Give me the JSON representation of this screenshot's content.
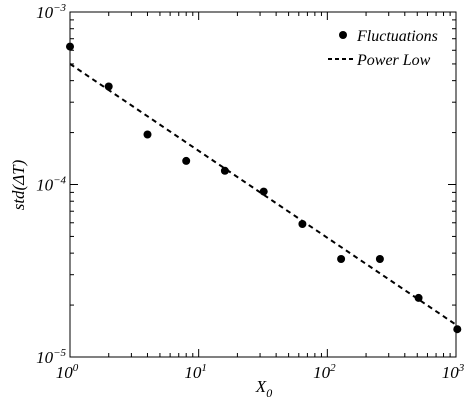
{
  "chart_data": {
    "type": "scatter",
    "x_scale": "log",
    "y_scale": "log",
    "xlim": [
      1,
      1000
    ],
    "ylim": [
      1e-05,
      0.001
    ],
    "grid": false,
    "legend_position": "top-right",
    "xlabel": "X",
    "xlabel_sub": "0",
    "ylabel": "std(ΔT)",
    "x_ticks": [
      {
        "value": 1,
        "base": "10",
        "exp": "0"
      },
      {
        "value": 10,
        "base": "10",
        "exp": "1"
      },
      {
        "value": 100,
        "base": "10",
        "exp": "2"
      },
      {
        "value": 1000,
        "base": "10",
        "exp": "3"
      }
    ],
    "y_ticks": [
      {
        "value": 1e-05,
        "base": "10",
        "exp": "−5"
      },
      {
        "value": 0.0001,
        "base": "10",
        "exp": "−4"
      },
      {
        "value": 0.001,
        "base": "10",
        "exp": "−3"
      }
    ],
    "series": [
      {
        "name": "Fluctuations",
        "kind": "scatter",
        "x": [
          1,
          2,
          4,
          8,
          16,
          32,
          64,
          128,
          256,
          512,
          1024
        ],
        "y": [
          0.00063,
          0.00037,
          0.000195,
          0.000137,
          0.00012,
          9.1e-05,
          5.9e-05,
          3.7e-05,
          3.7e-05,
          2.2e-05,
          1.45e-05
        ]
      },
      {
        "name": "Power Low",
        "kind": "line-dashed",
        "x": [
          1,
          1024
        ],
        "y": [
          0.0005,
          1.52e-05
        ]
      }
    ]
  }
}
